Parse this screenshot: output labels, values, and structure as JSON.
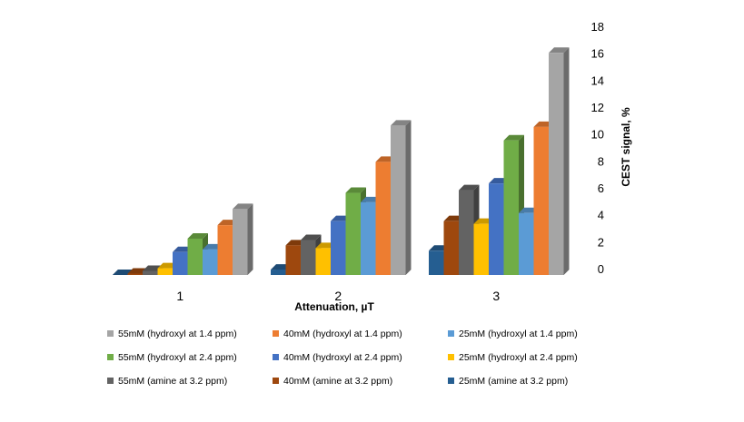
{
  "chart_data": {
    "type": "bar",
    "style": "3d-column",
    "title": "",
    "xlabel": "Attenuation, µT",
    "ylabel": "CEST signal, %",
    "ylim": [
      0,
      18
    ],
    "yticks": [
      0,
      2,
      4,
      6,
      8,
      10,
      12,
      14,
      16,
      18
    ],
    "grid": false,
    "legend_placement": "bottom",
    "categories": [
      "1",
      "2",
      "3"
    ],
    "series": [
      {
        "name": "25mM (amine at 3.2 ppm)",
        "color": "#255E91",
        "values": [
          0.0,
          0.4,
          1.8
        ]
      },
      {
        "name": "40mM (amine at 3.2 ppm)",
        "color": "#9E480E",
        "values": [
          0.1,
          2.2,
          4.0
        ]
      },
      {
        "name": "55mM (amine at 3.2 ppm)",
        "color": "#636363",
        "values": [
          0.3,
          2.6,
          6.3
        ]
      },
      {
        "name": "25mM (hydroxyl at 2.4 ppm)",
        "color": "#FFC000",
        "values": [
          0.5,
          2.0,
          3.8
        ]
      },
      {
        "name": "40mM (hydroxyl at 2.4 ppm)",
        "color": "#4472C4",
        "values": [
          1.7,
          4.0,
          6.8
        ]
      },
      {
        "name": "55mM (hydroxyl at 2.4 ppm)",
        "color": "#70AD47",
        "values": [
          2.7,
          6.1,
          10.0
        ]
      },
      {
        "name": "25mM (hydroxyl at 1.4 ppm)",
        "color": "#5B9BD5",
        "values": [
          1.9,
          5.4,
          4.6
        ]
      },
      {
        "name": "40mM (hydroxyl at 1.4 ppm)",
        "color": "#ED7D31",
        "values": [
          3.7,
          8.4,
          11.0
        ]
      },
      {
        "name": "55mM (hydroxyl at 1.4 ppm)",
        "color": "#A5A5A5",
        "values": [
          4.9,
          11.1,
          16.5
        ]
      }
    ],
    "legend_order": [
      8,
      7,
      6,
      5,
      4,
      3,
      2,
      1,
      0
    ]
  }
}
